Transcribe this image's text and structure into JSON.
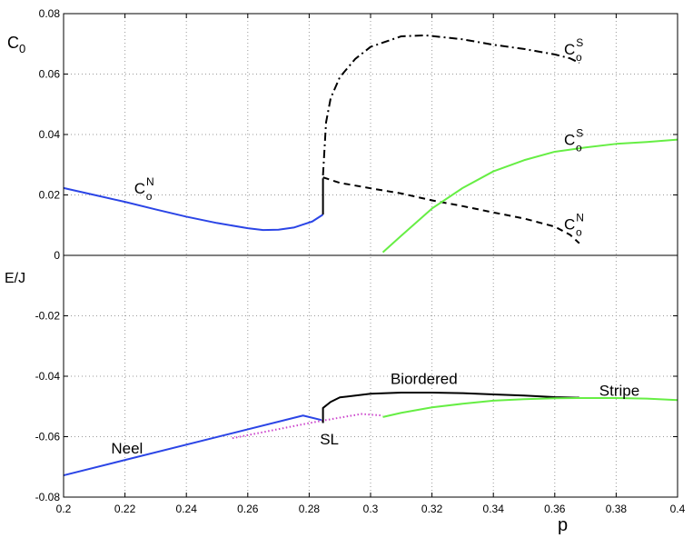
{
  "chart_data": {
    "type": "line",
    "grid": true,
    "x_axis": {
      "label": "p",
      "range": [
        0.2,
        0.4
      ],
      "ticks": [
        0.2,
        0.22,
        0.24,
        0.26,
        0.28,
        0.3,
        0.32,
        0.34,
        0.36,
        0.38,
        0.4
      ],
      "tick_labels": [
        "0.2",
        "0.22",
        "0.24",
        "0.26",
        "0.28",
        "0.3",
        "0.32",
        "0.34",
        "0.36",
        "0.38",
        "0.4"
      ]
    },
    "y_axis": {
      "range": [
        -0.08,
        0.08
      ],
      "ticks": [
        0.08,
        0.06,
        0.04,
        0.02,
        0,
        -0.02,
        -0.04,
        -0.06,
        -0.08
      ],
      "tick_labels": [
        "0.08",
        "0.06",
        "0.04",
        "0.02",
        "0",
        "-0.02",
        "-0.04",
        "-0.06",
        "-0.08"
      ],
      "upper_label": {
        "base": "C",
        "sub": "0"
      },
      "lower_label": "E/J"
    },
    "divider_y": 0,
    "series": [
      {
        "key": "c0_neel",
        "color": "#2b45e6",
        "dash": "solid",
        "width": 2,
        "points": [
          [
            0.2,
            0.0223
          ],
          [
            0.21,
            0.02
          ],
          [
            0.22,
            0.0177
          ],
          [
            0.23,
            0.0152
          ],
          [
            0.24,
            0.0128
          ],
          [
            0.25,
            0.0107
          ],
          [
            0.26,
            0.009
          ],
          [
            0.265,
            0.0084
          ],
          [
            0.27,
            0.0085
          ],
          [
            0.275,
            0.0092
          ],
          [
            0.278,
            0.0102
          ],
          [
            0.281,
            0.0112
          ],
          [
            0.2845,
            0.0135
          ]
        ]
      },
      {
        "key": "c0_jump",
        "color": "#000000",
        "dash": "solid",
        "width": 2,
        "points": [
          [
            0.2845,
            0.0135
          ],
          [
            0.2845,
            0.0255
          ]
        ]
      },
      {
        "key": "c0_neel_biordered",
        "color": "#000000",
        "dash": "dashed",
        "width": 2,
        "points": [
          [
            0.2845,
            0.0258
          ],
          [
            0.29,
            0.024
          ],
          [
            0.3,
            0.0222
          ],
          [
            0.31,
            0.0205
          ],
          [
            0.32,
            0.0182
          ],
          [
            0.33,
            0.0163
          ],
          [
            0.34,
            0.0142
          ],
          [
            0.35,
            0.0122
          ],
          [
            0.36,
            0.0095
          ],
          [
            0.365,
            0.0068
          ],
          [
            0.368,
            0.004
          ]
        ]
      },
      {
        "key": "c0_stripe_biordered",
        "color": "#000000",
        "dash": "dashdot",
        "width": 2,
        "points": [
          [
            0.2845,
            0.0265
          ],
          [
            0.2855,
            0.044
          ],
          [
            0.287,
            0.052
          ],
          [
            0.29,
            0.059
          ],
          [
            0.295,
            0.065
          ],
          [
            0.3,
            0.069
          ],
          [
            0.31,
            0.0725
          ],
          [
            0.318,
            0.0728
          ],
          [
            0.33,
            0.0715
          ],
          [
            0.34,
            0.0697
          ],
          [
            0.35,
            0.0683
          ],
          [
            0.36,
            0.0665
          ],
          [
            0.365,
            0.0652
          ],
          [
            0.368,
            0.0637
          ]
        ]
      },
      {
        "key": "c0_stripe",
        "color": "#66ee44",
        "dash": "solid",
        "width": 2,
        "points": [
          [
            0.304,
            0.001
          ],
          [
            0.31,
            0.0065
          ],
          [
            0.32,
            0.0155
          ],
          [
            0.33,
            0.0223
          ],
          [
            0.34,
            0.0278
          ],
          [
            0.35,
            0.0315
          ],
          [
            0.36,
            0.0343
          ],
          [
            0.37,
            0.0357
          ],
          [
            0.38,
            0.0369
          ],
          [
            0.39,
            0.0375
          ],
          [
            0.4,
            0.0383
          ]
        ]
      },
      {
        "key": "e_neel",
        "color": "#2b45e6",
        "dash": "solid",
        "width": 2,
        "points": [
          [
            0.2,
            -0.0728
          ],
          [
            0.278,
            -0.053
          ],
          [
            0.284,
            -0.0545
          ]
        ]
      },
      {
        "key": "e_sl",
        "color": "#cc44cc",
        "dash": "dotted",
        "width": 2,
        "points": [
          [
            0.255,
            -0.0605
          ],
          [
            0.27,
            -0.0575
          ],
          [
            0.28,
            -0.0555
          ],
          [
            0.29,
            -0.0537
          ],
          [
            0.297,
            -0.0525
          ],
          [
            0.304,
            -0.053
          ]
        ]
      },
      {
        "key": "e_biordered",
        "color": "#000000",
        "dash": "solid",
        "width": 2,
        "points": [
          [
            0.2845,
            -0.0555
          ],
          [
            0.2845,
            -0.0505
          ],
          [
            0.287,
            -0.0485
          ],
          [
            0.29,
            -0.047
          ],
          [
            0.3,
            -0.0458
          ],
          [
            0.31,
            -0.0454
          ],
          [
            0.32,
            -0.0454
          ],
          [
            0.33,
            -0.0456
          ],
          [
            0.34,
            -0.046
          ],
          [
            0.35,
            -0.0464
          ],
          [
            0.36,
            -0.0469
          ],
          [
            0.368,
            -0.0471
          ]
        ]
      },
      {
        "key": "e_stripe",
        "color": "#66ee44",
        "dash": "solid",
        "width": 2,
        "points": [
          [
            0.304,
            -0.0535
          ],
          [
            0.31,
            -0.0521
          ],
          [
            0.32,
            -0.0503
          ],
          [
            0.33,
            -0.0491
          ],
          [
            0.34,
            -0.0481
          ],
          [
            0.35,
            -0.0476
          ],
          [
            0.36,
            -0.0473
          ],
          [
            0.37,
            -0.0472
          ],
          [
            0.38,
            -0.0472
          ],
          [
            0.39,
            -0.0474
          ],
          [
            0.4,
            -0.0479
          ]
        ]
      }
    ],
    "annotations": [
      {
        "key": "ann-c0n-left",
        "base": "C",
        "sub": "o",
        "sup": "N",
        "x": 0.223,
        "y": 0.0205
      },
      {
        "key": "ann-c0s-top",
        "base": "C",
        "sub": "o",
        "sup": "S",
        "x": 0.363,
        "y": 0.0665
      },
      {
        "key": "ann-c0s-mid",
        "base": "C",
        "sub": "o",
        "sup": "S",
        "x": 0.363,
        "y": 0.0365
      },
      {
        "key": "ann-c0n-right",
        "base": "C",
        "sub": "o",
        "sup": "N",
        "x": 0.363,
        "y": 0.0085
      },
      {
        "key": "ann-neel",
        "text": "Neel",
        "x": 0.2155,
        "y": -0.0655
      },
      {
        "key": "ann-sl",
        "text": "SL",
        "x": 0.2835,
        "y": -0.0625
      },
      {
        "key": "ann-biordered",
        "text": "Biordered",
        "x": 0.3065,
        "y": -0.0425
      },
      {
        "key": "ann-stripe",
        "text": "Stripe",
        "x": 0.3745,
        "y": -0.0465
      }
    ]
  }
}
